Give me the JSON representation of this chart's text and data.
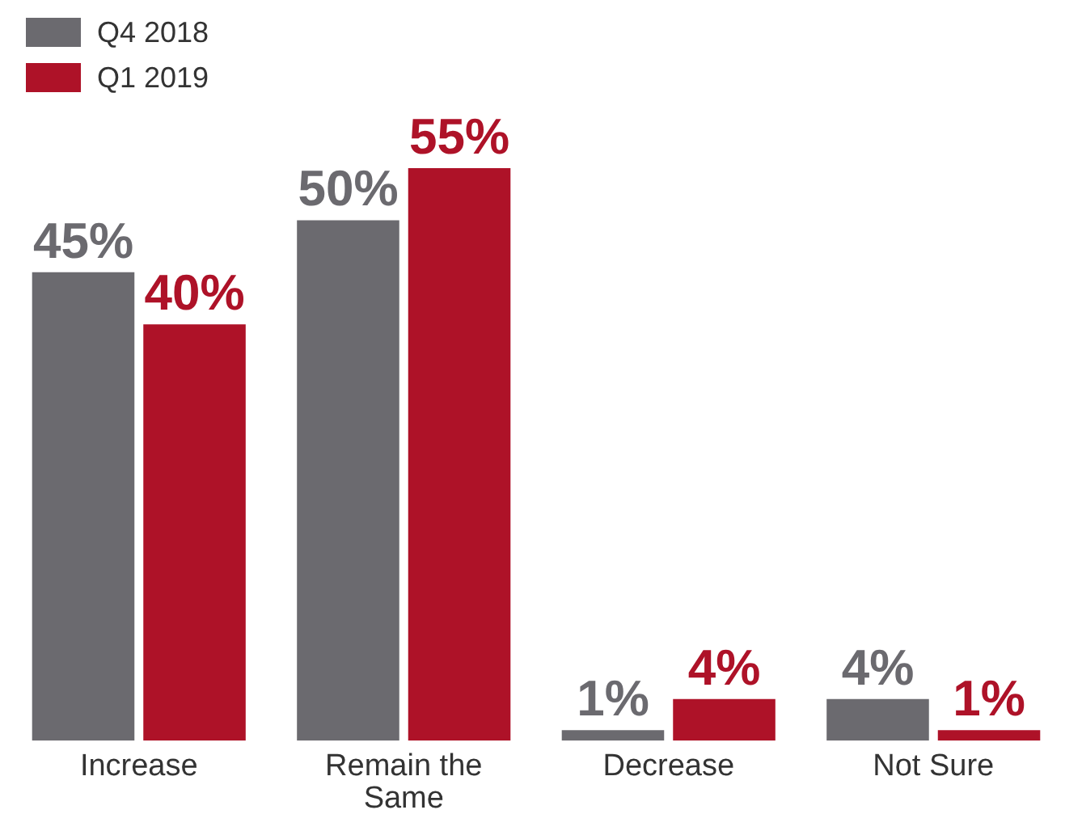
{
  "chart_data": {
    "type": "bar",
    "categories": [
      "Increase",
      "Remain the Same",
      "Decrease",
      "Not Sure"
    ],
    "series": [
      {
        "name": "Q4 2018",
        "color": "#6b6a6f",
        "values": [
          45,
          50,
          1,
          4
        ],
        "value_labels": [
          "45%",
          "50%",
          "1%",
          "4%"
        ]
      },
      {
        "name": "Q1 2019",
        "color": "#ae1228",
        "values": [
          40,
          55,
          4,
          1
        ],
        "value_labels": [
          "40%",
          "55%",
          "4%",
          "1%"
        ]
      }
    ],
    "legend": "top left",
    "grid": false
  }
}
